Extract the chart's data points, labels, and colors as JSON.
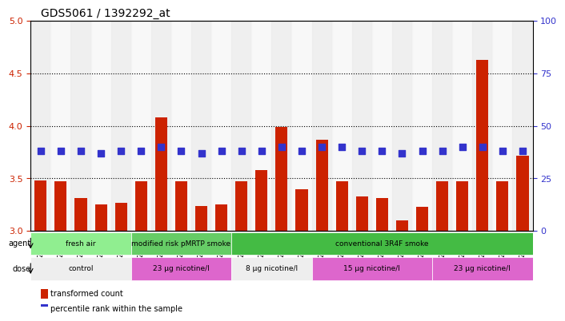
{
  "title": "GDS5061 / 1392292_at",
  "samples": [
    "GSM1217156",
    "GSM1217157",
    "GSM1217158",
    "GSM1217159",
    "GSM1217160",
    "GSM1217161",
    "GSM1217162",
    "GSM1217163",
    "GSM1217164",
    "GSM1217165",
    "GSM1217171",
    "GSM1217172",
    "GSM1217173",
    "GSM1217174",
    "GSM1217175",
    "GSM1217166",
    "GSM1217167",
    "GSM1217168",
    "GSM1217169",
    "GSM1217170",
    "GSM1217176",
    "GSM1217177",
    "GSM1217178",
    "GSM1217179",
    "GSM1217180"
  ],
  "bar_values": [
    3.48,
    3.47,
    3.31,
    3.25,
    3.27,
    3.47,
    4.08,
    3.47,
    3.24,
    3.25,
    3.47,
    3.58,
    3.99,
    3.4,
    3.87,
    3.47,
    3.33,
    3.31,
    3.1,
    3.23,
    3.47,
    3.47,
    4.63,
    3.47,
    3.72
  ],
  "percentile_values": [
    38,
    38,
    38,
    37,
    38,
    38,
    40,
    38,
    37,
    38,
    38,
    38,
    40,
    38,
    40,
    40,
    38,
    38,
    37,
    38,
    38,
    40,
    40,
    38,
    38
  ],
  "bar_color": "#cc2200",
  "percentile_color": "#3333cc",
  "ylim_left": [
    3.0,
    5.0
  ],
  "ylim_right": [
    0,
    100
  ],
  "yticks_left": [
    3.0,
    3.5,
    4.0,
    4.5,
    5.0
  ],
  "yticks_right": [
    0,
    25,
    50,
    75,
    100
  ],
  "dotted_lines": [
    3.5,
    4.0,
    4.5
  ],
  "agent_groups": [
    {
      "label": "fresh air",
      "start": 0,
      "end": 5,
      "color": "#90ee90"
    },
    {
      "label": "modified risk pMRTP smoke",
      "start": 5,
      "end": 10,
      "color": "#66cc66"
    },
    {
      "label": "conventional 3R4F smoke",
      "start": 10,
      "end": 25,
      "color": "#44bb44"
    }
  ],
  "dose_groups": [
    {
      "label": "control",
      "start": 0,
      "end": 5,
      "color": "#eeeeee"
    },
    {
      "label": "23 μg nicotine/l",
      "start": 5,
      "end": 10,
      "color": "#dd66cc"
    },
    {
      "label": "8 μg nicotine/l",
      "start": 10,
      "end": 14,
      "color": "#eeeeee"
    },
    {
      "label": "15 μg nicotine/l",
      "start": 14,
      "end": 20,
      "color": "#dd66cc"
    },
    {
      "label": "23 μg nicotine/l",
      "start": 20,
      "end": 25,
      "color": "#dd66cc"
    }
  ],
  "legend_items": [
    {
      "label": "transformed count",
      "color": "#cc2200"
    },
    {
      "label": "percentile rank within the sample",
      "color": "#3333cc"
    }
  ],
  "bg_color": "#f0f0f0"
}
